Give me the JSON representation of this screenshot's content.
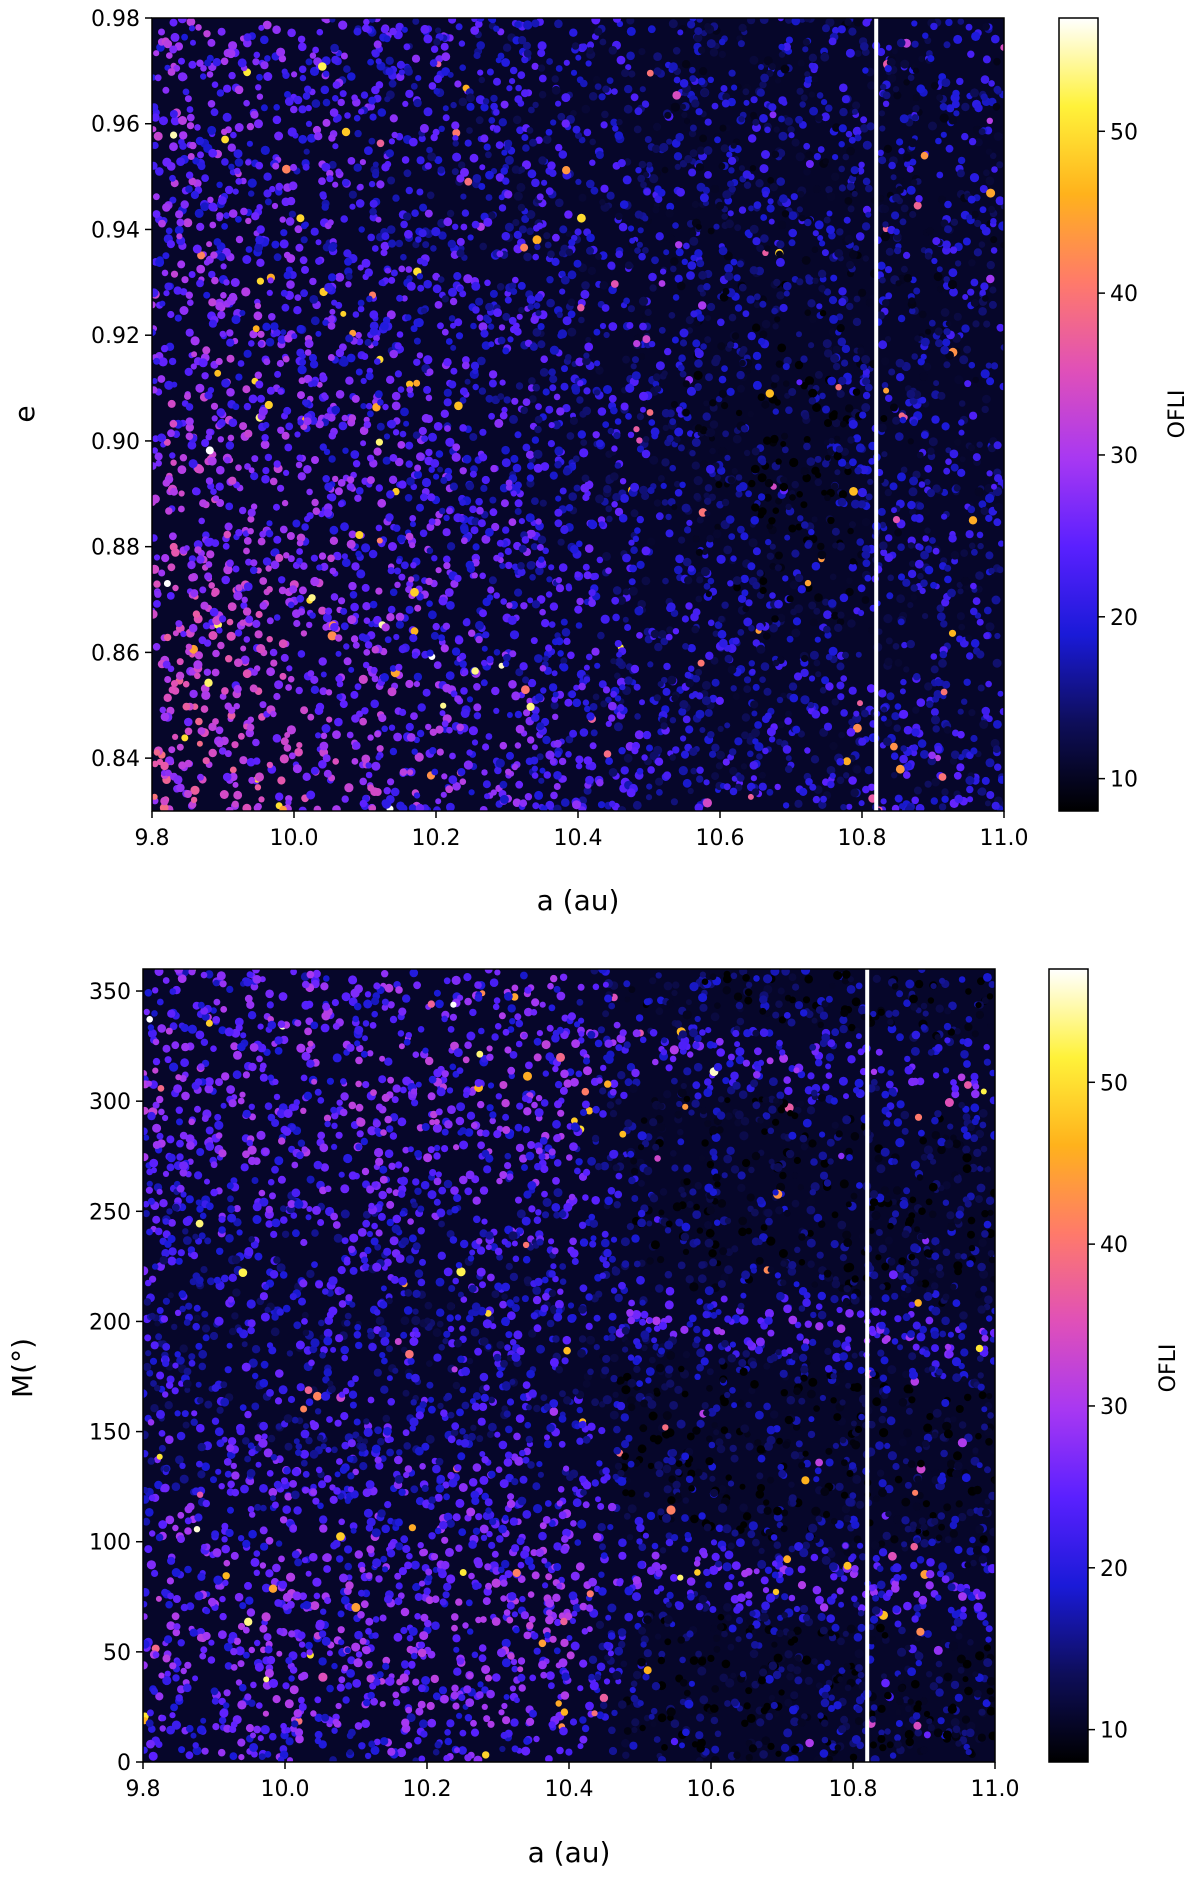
{
  "chart_data": [
    {
      "type": "scatter",
      "name": "top-panel",
      "xlabel": "a (au)",
      "ylabel": "e",
      "xlim": [
        9.8,
        11.0
      ],
      "ylim": [
        0.83,
        0.98
      ],
      "xticks": [
        9.8,
        10.0,
        10.2,
        10.4,
        10.6,
        10.8,
        11.0
      ],
      "xtick_labels": [
        "9.8",
        "10.0",
        "10.2",
        "10.4",
        "10.6",
        "10.8",
        "11.0"
      ],
      "yticks": [
        0.84,
        0.86,
        0.88,
        0.9,
        0.92,
        0.94,
        0.96,
        0.98
      ],
      "ytick_labels": [
        "0.84",
        "0.86",
        "0.88",
        "0.90",
        "0.92",
        "0.94",
        "0.96",
        "0.98"
      ],
      "vertical_line_x": 10.82,
      "vertical_line_color": "#ffffff",
      "colorbar": {
        "label": "OFLI",
        "range": [
          8,
          57
        ],
        "ticks": [
          10,
          20,
          30,
          40,
          50
        ],
        "tick_labels": [
          "10",
          "20",
          "30",
          "40",
          "50"
        ],
        "colormap": "gnuplot2",
        "colors": [
          "#000000",
          "#0e0e5a",
          "#1a1ad8",
          "#5a20ff",
          "#a838f2",
          "#e050b8",
          "#ff7a6a",
          "#ffb21c",
          "#fff23a",
          "#ffffff"
        ]
      },
      "description_of_field": "dense scatter of chaos indicator OFLI; higher values (magenta/orange) concentrated at lower a and low e; low values (dark) for a > 10.5 and e > 0.86"
    },
    {
      "type": "scatter",
      "name": "bottom-panel",
      "xlabel": "a (au)",
      "ylabel": "M(°)",
      "xlim": [
        9.8,
        11.0
      ],
      "ylim": [
        0,
        360
      ],
      "xticks": [
        9.8,
        10.0,
        10.2,
        10.4,
        10.6,
        10.8,
        11.0
      ],
      "xtick_labels": [
        "9.8",
        "10.0",
        "10.2",
        "10.4",
        "10.6",
        "10.8",
        "11.0"
      ],
      "yticks": [
        0,
        50,
        100,
        150,
        200,
        250,
        300,
        350
      ],
      "ytick_labels": [
        "0",
        "50",
        "100",
        "150",
        "200",
        "250",
        "300",
        "350"
      ],
      "vertical_line_x": 10.82,
      "vertical_line_color": "#ffffff",
      "colorbar": {
        "label": "OFLI",
        "range": [
          8,
          57
        ],
        "ticks": [
          10,
          20,
          30,
          40,
          50
        ],
        "tick_labels": [
          "10",
          "20",
          "30",
          "40",
          "50"
        ],
        "colormap": "gnuplot2",
        "colors": [
          "#000000",
          "#0e0e5a",
          "#1a1ad8",
          "#5a20ff",
          "#a838f2",
          "#e050b8",
          "#ff7a6a",
          "#ffb21c",
          "#fff23a",
          "#ffffff"
        ]
      },
      "bands_M_deg": [
        80,
        195,
        315
      ],
      "description_of_field": "dense scatter of OFLI; for a > 10.45 dark stable regions separated by brighter chaotic bands near M ≈ 80°, 195°, 315°"
    }
  ]
}
